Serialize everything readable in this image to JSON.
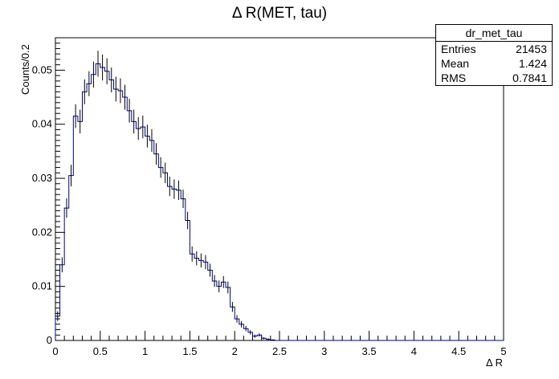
{
  "chart_data": {
    "type": "histogram",
    "title": "Δ R(MET, tau)",
    "xlabel": "Δ R",
    "ylabel": "Counts/0.2",
    "xlim": [
      0,
      5
    ],
    "ylim": [
      0,
      0.056
    ],
    "bin_width": 0.05,
    "x_ticks": [
      "0",
      "0.5",
      "1",
      "1.5",
      "2",
      "2.5",
      "3",
      "3.5",
      "4",
      "4.5",
      "5"
    ],
    "y_ticks": [
      "0",
      "0.01",
      "0.02",
      "0.03",
      "0.04",
      "0.05"
    ],
    "line_color": "#000080",
    "values": [
      0.0045,
      0.014,
      0.0245,
      0.0305,
      0.0415,
      0.0405,
      0.046,
      0.0475,
      0.0492,
      0.0512,
      0.0505,
      0.0498,
      0.0482,
      0.0465,
      0.0462,
      0.045,
      0.0425,
      0.0405,
      0.0392,
      0.0395,
      0.0378,
      0.037,
      0.0345,
      0.032,
      0.031,
      0.0285,
      0.028,
      0.0278,
      0.0262,
      0.0222,
      0.016,
      0.0152,
      0.0148,
      0.0145,
      0.013,
      0.011,
      0.01,
      0.0108,
      0.0098,
      0.0062,
      0.004,
      0.003,
      0.0022,
      0.0015,
      0.0008,
      0.001,
      0.0004,
      0.0002,
      0.0001,
      0,
      0,
      0,
      0,
      0,
      0,
      0,
      0,
      0,
      0,
      0,
      0,
      0,
      0,
      0,
      0,
      0,
      0,
      0,
      0,
      0,
      0,
      0,
      0,
      0,
      0,
      0,
      0,
      0,
      0,
      0,
      0,
      0,
      0,
      0,
      0,
      0,
      0,
      0,
      0,
      0,
      0,
      0,
      0,
      0,
      0,
      0,
      0,
      0,
      0,
      0
    ],
    "errors": [
      0.0009,
      0.0014,
      0.0018,
      0.002,
      0.0022,
      0.0022,
      0.0023,
      0.0023,
      0.0024,
      0.0024,
      0.0024,
      0.0024,
      0.0023,
      0.0023,
      0.0023,
      0.0023,
      0.0022,
      0.0022,
      0.0021,
      0.0021,
      0.0021,
      0.0021,
      0.002,
      0.0019,
      0.0019,
      0.0018,
      0.0018,
      0.0018,
      0.0017,
      0.0016,
      0.0014,
      0.0013,
      0.0013,
      0.0013,
      0.0012,
      0.0011,
      0.0011,
      0.0011,
      0.0011,
      0.0009,
      0.0007,
      0.0006,
      0.0005,
      0.0004,
      0.0003,
      0.0003,
      0.0002,
      0.0002,
      0.0001,
      0,
      0,
      0,
      0,
      0,
      0,
      0,
      0,
      0,
      0,
      0,
      0,
      0,
      0,
      0,
      0,
      0,
      0,
      0,
      0,
      0,
      0,
      0,
      0,
      0,
      0,
      0,
      0,
      0,
      0,
      0,
      0,
      0,
      0,
      0,
      0,
      0,
      0,
      0,
      0,
      0,
      0,
      0,
      0,
      0,
      0,
      0,
      0,
      0,
      0,
      0
    ]
  },
  "stats_box": {
    "name": "dr_met_tau",
    "entries_label": "Entries",
    "entries_value": "21453",
    "mean_label": "Mean",
    "mean_value": "1.424",
    "rms_label": "RMS",
    "rms_value": "0.7841"
  }
}
